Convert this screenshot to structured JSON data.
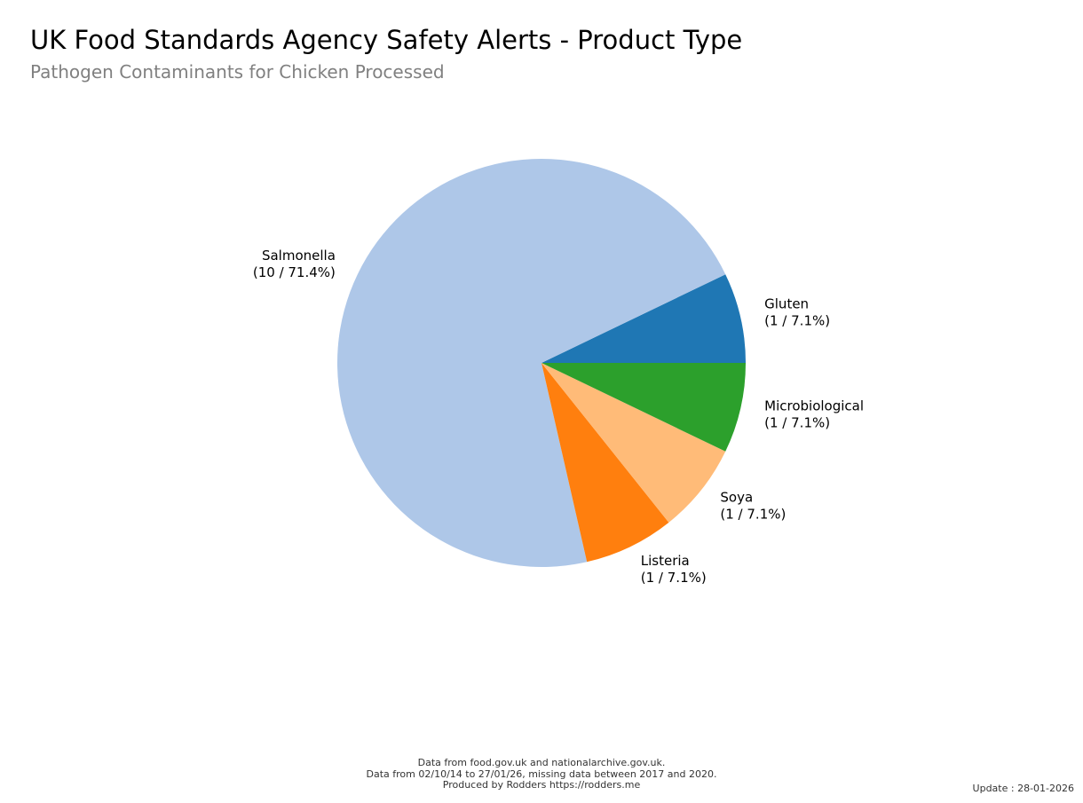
{
  "header": {
    "title": "UK Food Standards Agency Safety Alerts - Product Type",
    "subtitle": "Pathogen Contaminants for Chicken Processed"
  },
  "chart_data": {
    "type": "pie",
    "title": "UK Food Standards Agency Safety Alerts - Product Type",
    "subtitle": "Pathogen Contaminants for Chicken Processed",
    "slices": [
      {
        "label": "Gluten",
        "value": 1,
        "display": "(1 / 7.1%)",
        "color": "#1f77b4"
      },
      {
        "label": "Salmonella",
        "value": 10,
        "display": "(10 / 71.4%)",
        "color": "#aec7e8"
      },
      {
        "label": "Listeria",
        "value": 1,
        "display": "(1 / 7.1%)",
        "color": "#ff7f0e"
      },
      {
        "label": "Soya",
        "value": 1,
        "display": "(1 / 7.1%)",
        "color": "#ffbb78"
      },
      {
        "label": "Microbiological",
        "value": 1,
        "display": "(1 / 7.1%)",
        "color": "#2ca02c"
      }
    ],
    "start_angle": "0 degrees (right), counter-clockwise"
  },
  "footer": {
    "line1": "Data from food.gov.uk and nationalarchive.gov.uk.",
    "line2": "Data from 02/10/14 to 27/01/26, missing data between 2017 and 2020.",
    "line3": "Produced by Rodders https://rodders.me",
    "update": "Update : 28-01-2026"
  }
}
